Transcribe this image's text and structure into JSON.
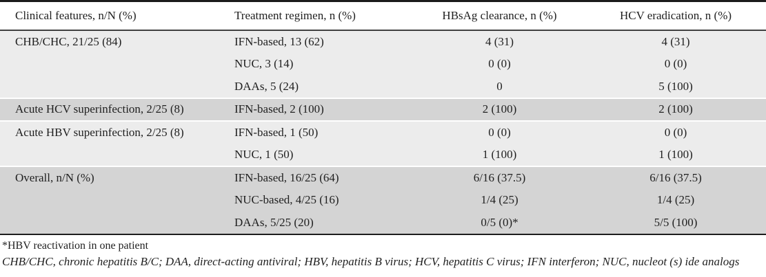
{
  "table": {
    "headers": [
      "Clinical features, n/N (%)",
      "Treatment regimen, n (%)",
      "HBsAg clearance, n (%)",
      "HCV eradication, n (%)"
    ],
    "rows": [
      {
        "clinical": "CHB/CHC, 21/25 (84)",
        "regimen": "IFN-based, 13 (62)",
        "hbsag": "4 (31)",
        "hcv": "4 (31)"
      },
      {
        "clinical": "",
        "regimen": "NUC, 3 (14)",
        "hbsag": "0 (0)",
        "hcv": "0 (0)"
      },
      {
        "clinical": "",
        "regimen": "DAAs, 5 (24)",
        "hbsag": "0",
        "hcv": "5 (100)"
      },
      {
        "clinical": "Acute HCV superinfection, 2/25 (8)",
        "regimen": "IFN-based, 2 (100)",
        "hbsag": "2 (100)",
        "hcv": "2 (100)"
      },
      {
        "clinical": "Acute HBV superinfection, 2/25 (8)",
        "regimen": "IFN-based, 1 (50)",
        "hbsag": "0 (0)",
        "hcv": "0 (0)"
      },
      {
        "clinical": "",
        "regimen": "NUC, 1 (50)",
        "hbsag": "1 (100)",
        "hcv": "1 (100)"
      },
      {
        "clinical": "Overall, n/N (%)",
        "regimen": "IFN-based, 16/25 (64)",
        "hbsag": "6/16 (37.5)",
        "hcv": "6/16 (37.5)"
      },
      {
        "clinical": "",
        "regimen": "NUC-based, 4/25 (16)",
        "hbsag": "1/4 (25)",
        "hcv": "1/4 (25)"
      },
      {
        "clinical": "",
        "regimen": "DAAs, 5/25 (20)",
        "hbsag": "0/5 (0)*",
        "hcv": "5/5 (100)"
      }
    ],
    "footnotes": {
      "symbol_note": "*HBV reactivation in one patient",
      "abbreviations": "CHB/CHC, chronic hepatitis B/C; DAA, direct-acting antiviral; HBV, hepatitis B virus; HCV, hepatitis C virus; IFN interferon; NUC, nucleot (s) ide analogs"
    },
    "colors": {
      "band_light": "#ececec",
      "band_dark": "#d4d4d4",
      "rule_dark": "#1c1c1c",
      "text": "#1f1f1f"
    }
  }
}
